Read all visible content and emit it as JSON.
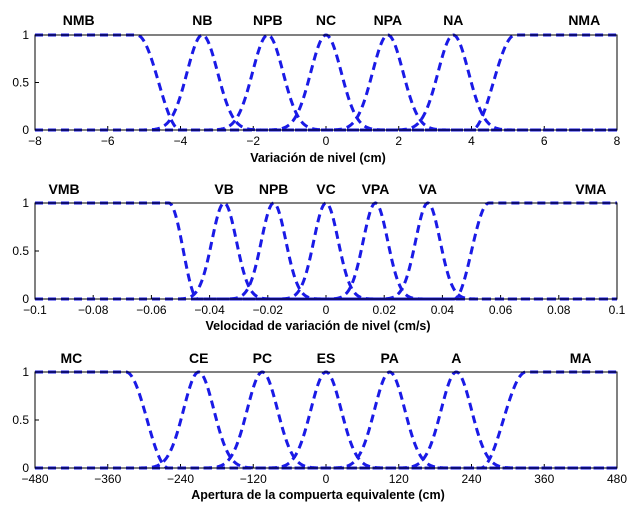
{
  "chart_data": [
    {
      "type": "line",
      "xlabel": "Variación de nivel (cm)",
      "ylabel": "",
      "xlim": [
        -8,
        8
      ],
      "ylim": [
        0,
        1
      ],
      "xticks": [
        -8,
        -6,
        -4,
        -2,
        0,
        2,
        4,
        6,
        8
      ],
      "xtick_labels": [
        "−8",
        "−6",
        "−4",
        "−2",
        "0",
        "2",
        "4",
        "6",
        "8"
      ],
      "yticks": [
        0,
        0.5,
        1
      ],
      "ytick_labels": [
        "0",
        "0.5",
        "1"
      ],
      "series": [
        {
          "name": "NMB",
          "shape": "z",
          "a": -5.2,
          "b": -4.0,
          "label_x": -6.8
        },
        {
          "name": "NB",
          "shape": "gauss",
          "center": -3.4,
          "sigma": 0.42
        },
        {
          "name": "NPB",
          "shape": "gauss",
          "center": -1.6,
          "sigma": 0.42
        },
        {
          "name": "NC",
          "shape": "gauss",
          "center": 0,
          "sigma": 0.42
        },
        {
          "name": "NPA",
          "shape": "gauss",
          "center": 1.7,
          "sigma": 0.42
        },
        {
          "name": "NA",
          "shape": "gauss",
          "center": 3.5,
          "sigma": 0.42
        },
        {
          "name": "NMA",
          "shape": "s",
          "a": 4.0,
          "b": 5.2,
          "label_x": 7.1
        }
      ]
    },
    {
      "type": "line",
      "xlabel": "Velocidad de variación de nivel (cm/s)",
      "ylabel": "",
      "xlim": [
        -0.1,
        0.1
      ],
      "ylim": [
        0,
        1
      ],
      "xticks": [
        -0.1,
        -0.08,
        -0.06,
        -0.04,
        -0.02,
        0,
        0.02,
        0.04,
        0.06,
        0.08,
        0.1
      ],
      "xtick_labels": [
        "−0.1",
        "−0.08",
        "−0.06",
        "−0.04",
        "−0.02",
        "0",
        "0.02",
        "0.04",
        "0.06",
        "0.08",
        "0.1"
      ],
      "yticks": [
        0,
        0.5,
        1
      ],
      "ytick_labels": [
        "0",
        "0.5",
        "1"
      ],
      "series": [
        {
          "name": "VMB",
          "shape": "z",
          "a": -0.054,
          "b": -0.044,
          "label_x": -0.09
        },
        {
          "name": "VB",
          "shape": "gauss",
          "center": -0.035,
          "sigma": 0.0042
        },
        {
          "name": "NPB",
          "shape": "gauss",
          "center": -0.018,
          "sigma": 0.0042
        },
        {
          "name": "VC",
          "shape": "gauss",
          "center": 0,
          "sigma": 0.0042
        },
        {
          "name": "VPA",
          "shape": "gauss",
          "center": 0.017,
          "sigma": 0.0042
        },
        {
          "name": "VA",
          "shape": "gauss",
          "center": 0.035,
          "sigma": 0.0042
        },
        {
          "name": "VMA",
          "shape": "s",
          "a": 0.044,
          "b": 0.056,
          "label_x": 0.091
        }
      ]
    },
    {
      "type": "line",
      "xlabel": "Apertura de la compuerta equivalente (cm)",
      "ylabel": "",
      "xlim": [
        -480,
        480
      ],
      "ylim": [
        0,
        1
      ],
      "xticks": [
        -480,
        -360,
        -240,
        -120,
        0,
        120,
        240,
        360,
        480
      ],
      "xtick_labels": [
        "−480",
        "−360",
        "−240",
        "−120",
        "0",
        "120",
        "240",
        "360",
        "480"
      ],
      "yticks": [
        0,
        0.5,
        1
      ],
      "ytick_labels": [
        "0",
        "0.5",
        "1"
      ],
      "series": [
        {
          "name": "MC",
          "shape": "z",
          "a": -330,
          "b": -260,
          "label_x": -420
        },
        {
          "name": "CE",
          "shape": "gauss",
          "center": -210,
          "sigma": 25
        },
        {
          "name": "PC",
          "shape": "gauss",
          "center": -105,
          "sigma": 25
        },
        {
          "name": "ES",
          "shape": "gauss",
          "center": 0,
          "sigma": 25
        },
        {
          "name": "PA",
          "shape": "gauss",
          "center": 105,
          "sigma": 25
        },
        {
          "name": "A",
          "shape": "gauss",
          "center": 215,
          "sigma": 25
        },
        {
          "name": "MA",
          "shape": "s",
          "a": 255,
          "b": 330,
          "label_x": 420
        }
      ]
    }
  ],
  "colors": {
    "series": "#1a1ae6",
    "axis": "#000000"
  }
}
